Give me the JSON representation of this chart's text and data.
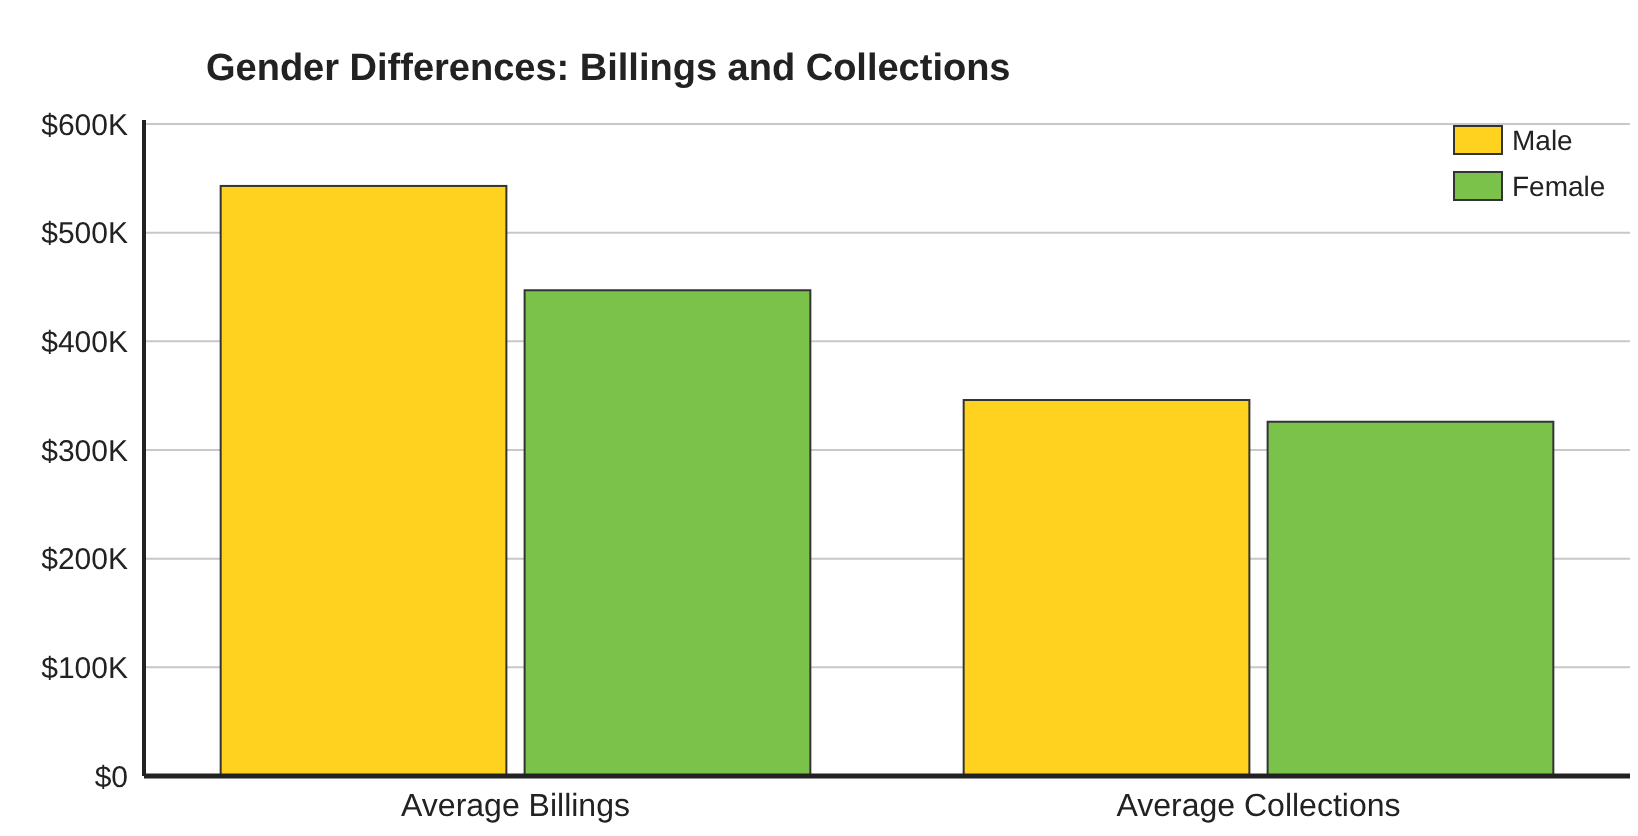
{
  "chart_data": {
    "type": "bar",
    "title": "Gender Differences: Billings and Collections",
    "categories": [
      "Average Billings",
      "Average Collections"
    ],
    "series": [
      {
        "name": "Male",
        "color": "#ffd21f",
        "values": [
          543000,
          346000
        ]
      },
      {
        "name": "Female",
        "color": "#7bc24a",
        "values": [
          447000,
          326000
        ]
      }
    ],
    "ylim": [
      0,
      600000
    ],
    "yticks": [
      {
        "value": 0,
        "label": "$0"
      },
      {
        "value": 100000,
        "label": "$100K"
      },
      {
        "value": 200000,
        "label": "$200K"
      },
      {
        "value": 300000,
        "label": "$300K"
      },
      {
        "value": 400000,
        "label": "$400K"
      },
      {
        "value": 500000,
        "label": "$500K"
      },
      {
        "value": 600000,
        "label": "$600K"
      }
    ],
    "grid": "y",
    "legend": "top right"
  }
}
